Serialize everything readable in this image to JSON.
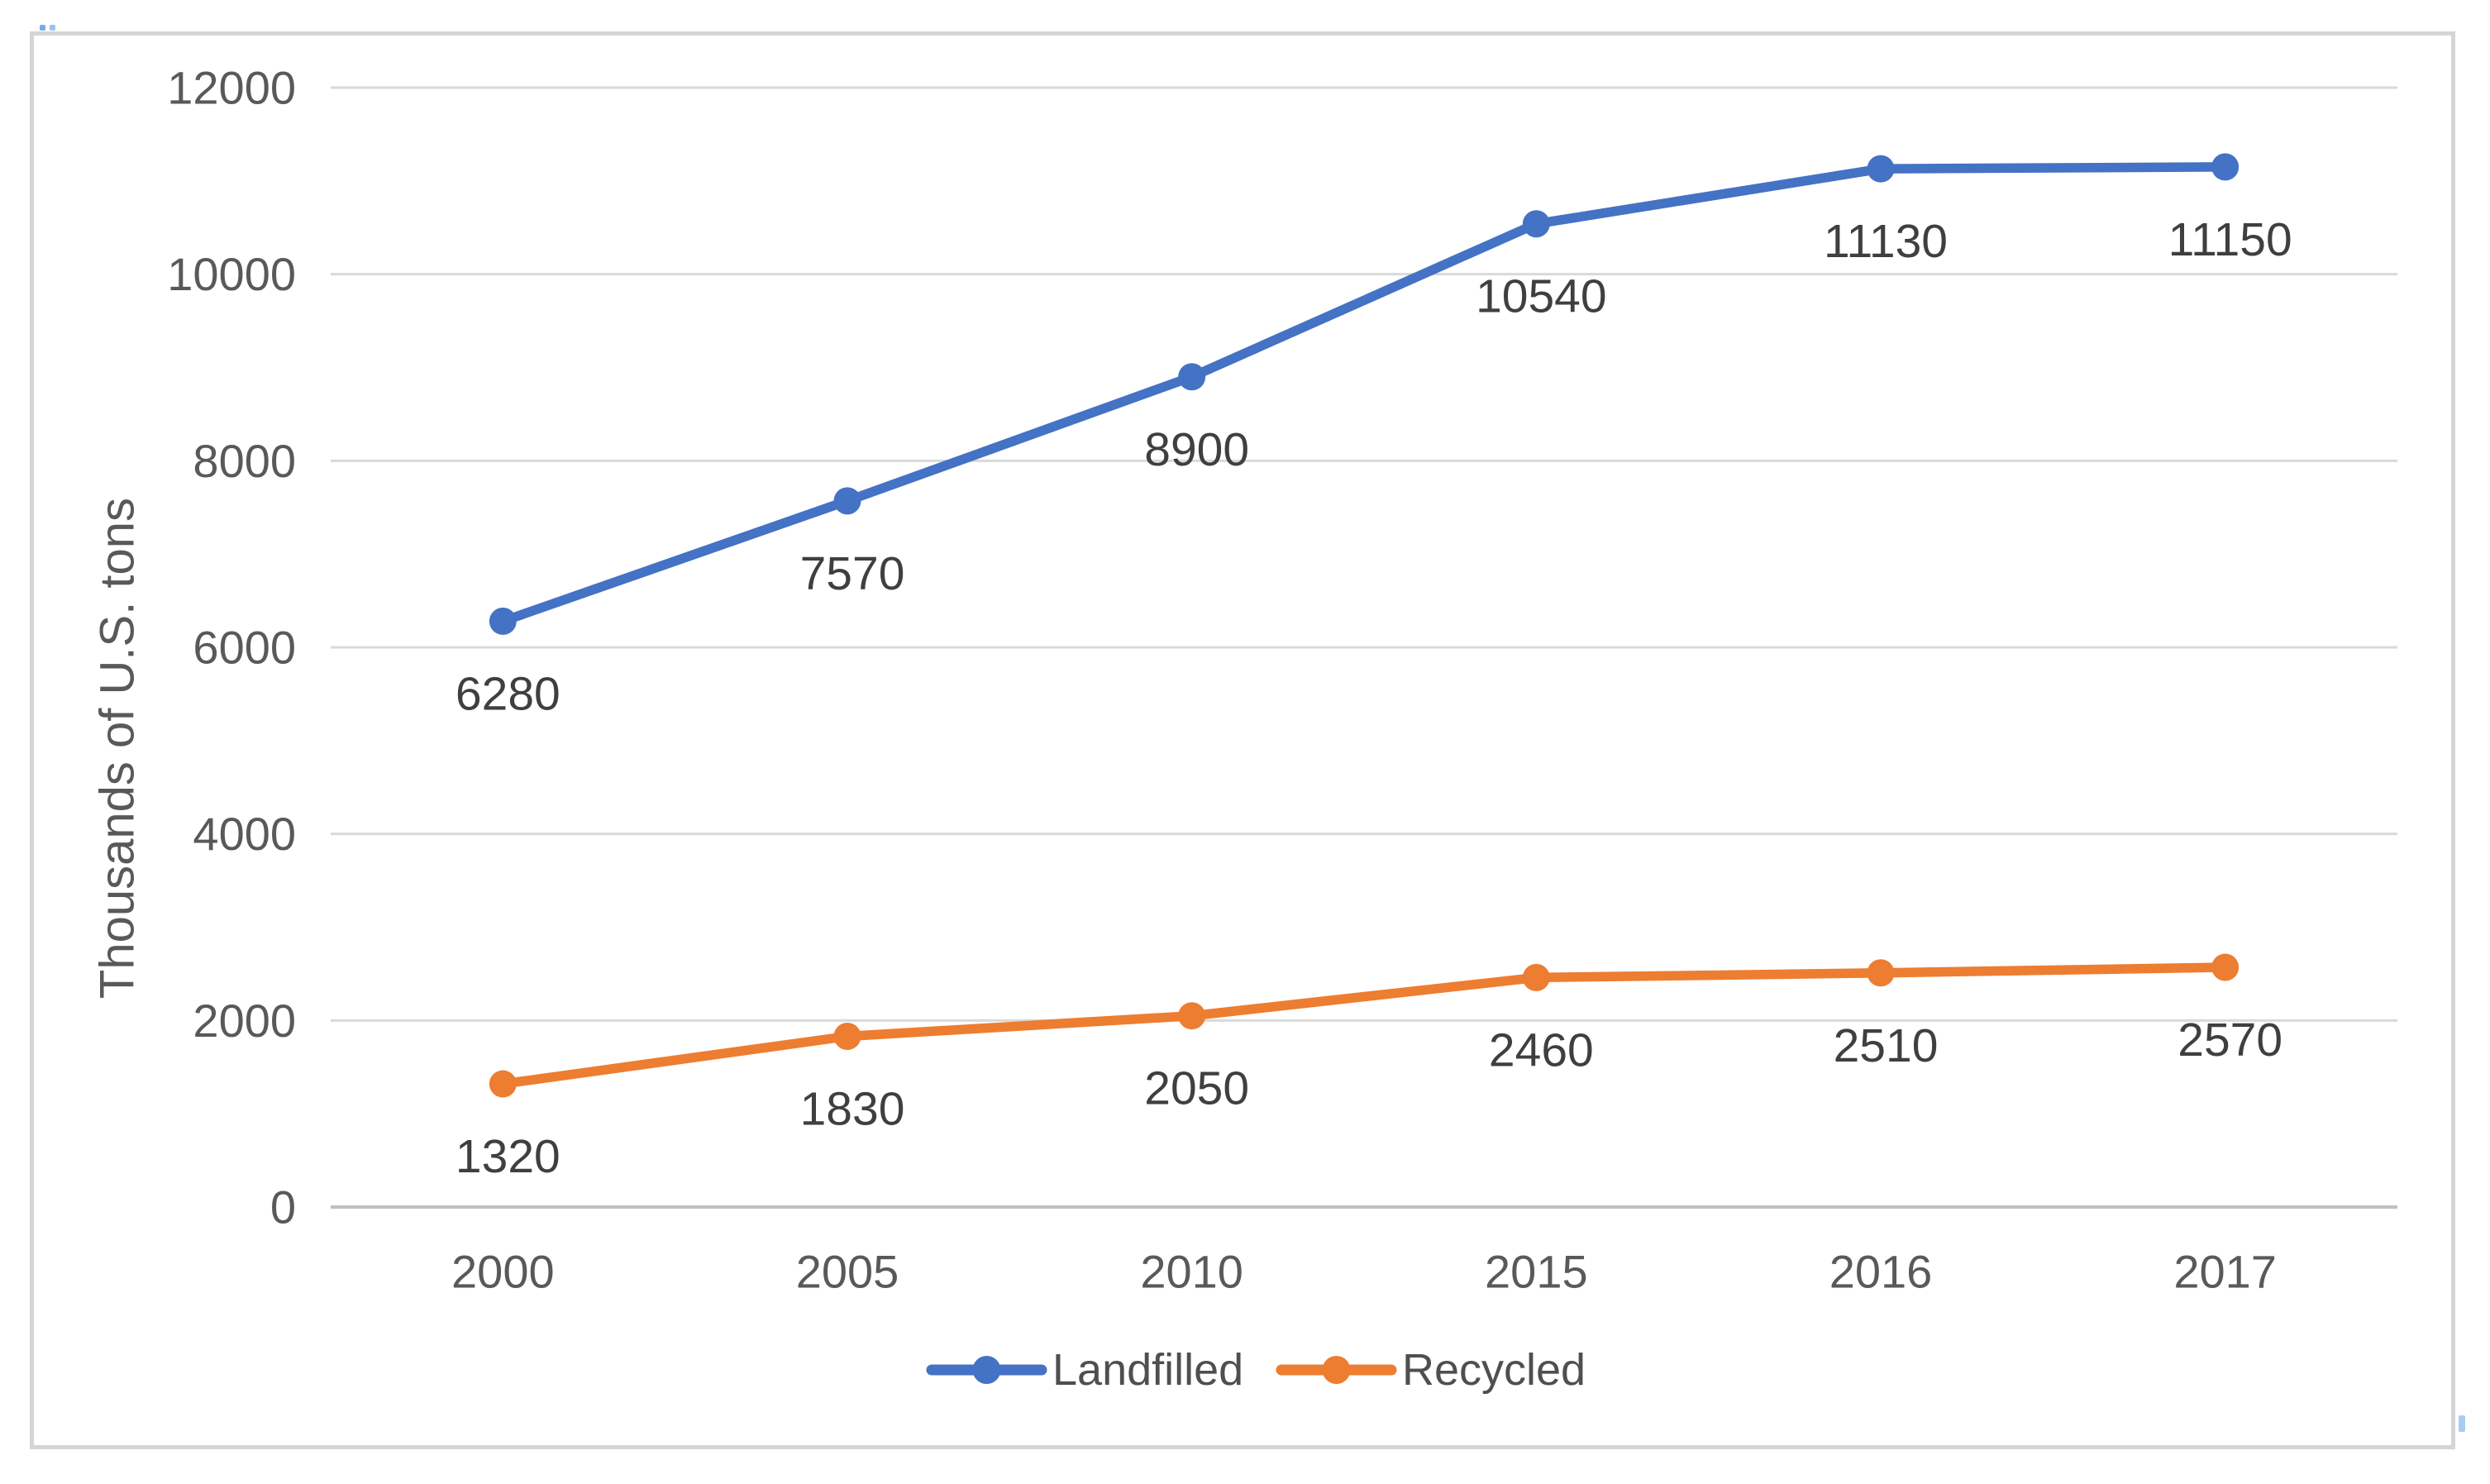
{
  "chart_data": {
    "type": "line",
    "title": "",
    "xlabel": "",
    "ylabel": "Thousands of U.S. tons",
    "categories": [
      "2000",
      "2005",
      "2010",
      "2015",
      "2016",
      "2017"
    ],
    "series": [
      {
        "name": "Landfilled",
        "color": "#4472C4",
        "values": [
          6280,
          7570,
          8900,
          10540,
          11130,
          11150
        ]
      },
      {
        "name": "Recycled",
        "color": "#ED7D31",
        "values": [
          1320,
          1830,
          2050,
          2460,
          2510,
          2570
        ]
      }
    ],
    "ylim": [
      0,
      12000
    ],
    "ytick_step": 2000,
    "yticks": [
      "0",
      "2000",
      "4000",
      "6000",
      "8000",
      "10000",
      "12000"
    ],
    "grid": true,
    "legend_position": "bottom",
    "data_label_position": "below",
    "marker": "circle"
  },
  "colors": {
    "gridline": "#D9D9D9",
    "axis_line": "#BFBFBF",
    "axis_text": "#595959",
    "data_label_text": "#3F3F3F",
    "legend_text": "#4F4F4F",
    "frame_border": "#D5D5D5",
    "background": "#FFFFFF",
    "selection_artifact": "#8FBCEF"
  }
}
